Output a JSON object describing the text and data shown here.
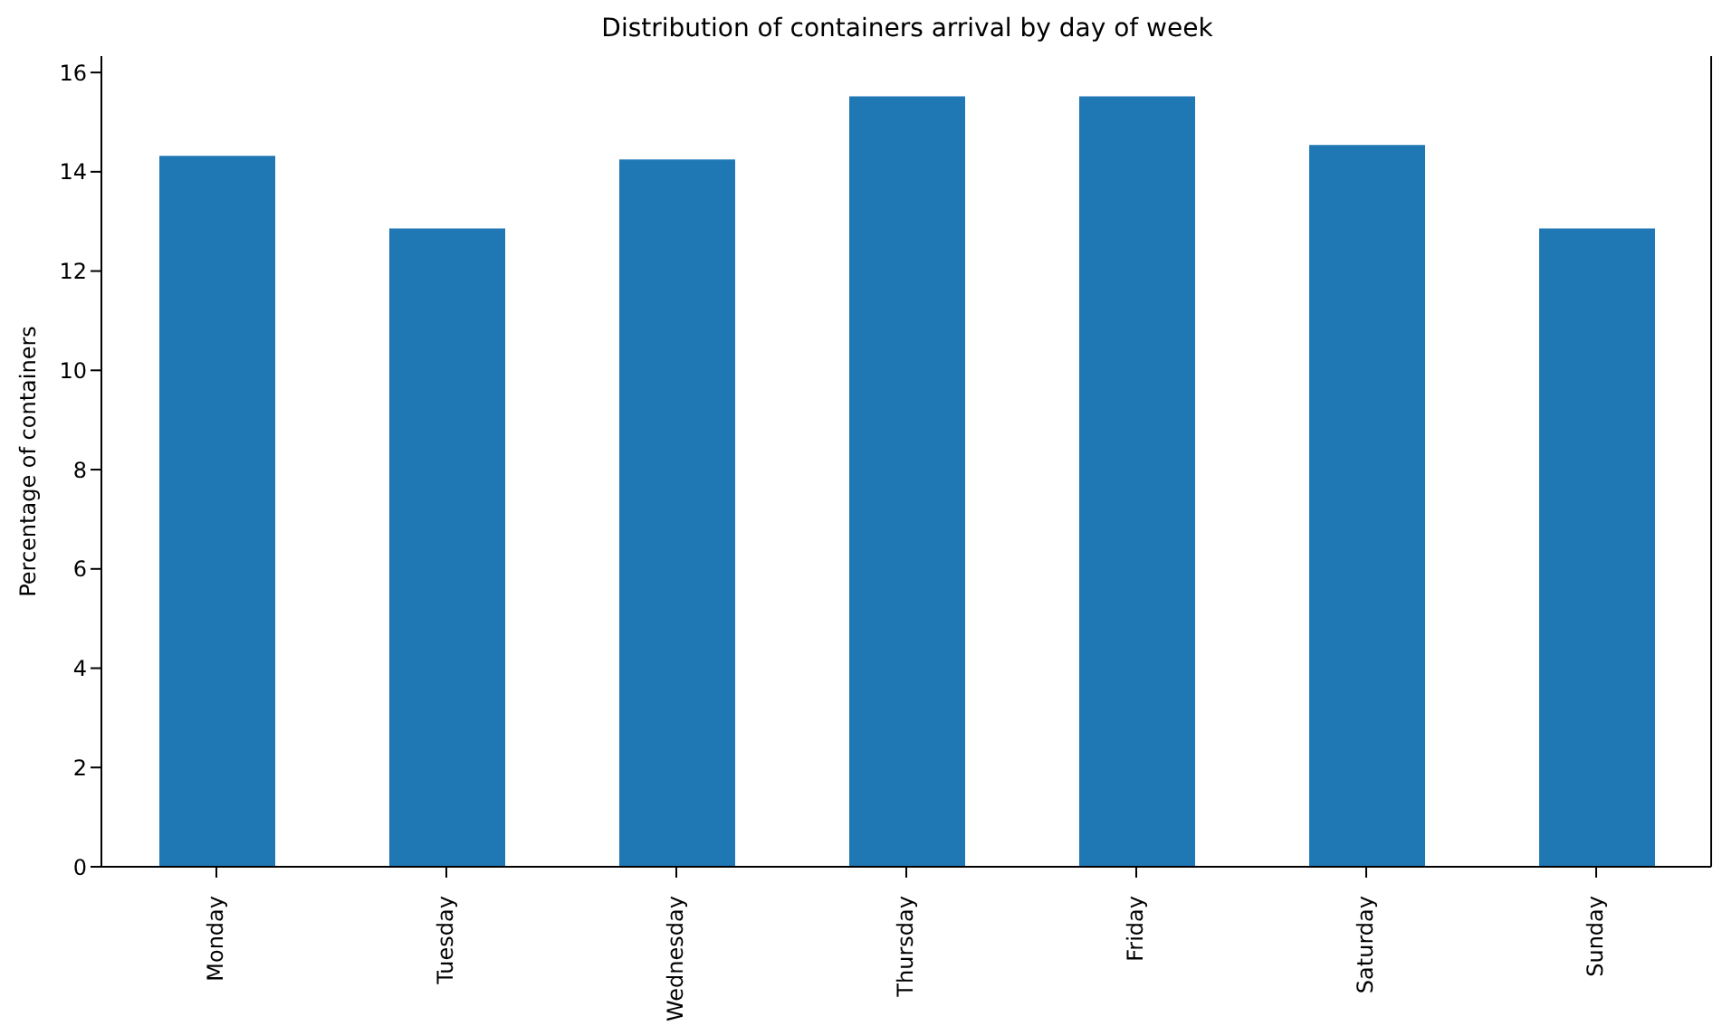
{
  "chart_data": {
    "type": "bar",
    "title": "Distribution of containers arrival by day of week",
    "ylabel": "Percentage of containers",
    "categories": [
      "Monday",
      "Tuesday",
      "Wednesday",
      "Thursday",
      "Friday",
      "Saturday",
      "Sunday"
    ],
    "values": [
      14.32,
      12.86,
      14.25,
      15.52,
      15.52,
      14.54,
      12.86
    ],
    "color": "#1f77b4",
    "ylim": [
      0,
      16.33
    ],
    "yticks": [
      0,
      2,
      4,
      6,
      8,
      10,
      12,
      14,
      16
    ],
    "grid": false
  }
}
